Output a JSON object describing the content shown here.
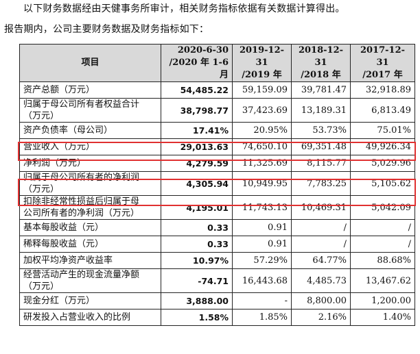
{
  "intro": {
    "line1": "以下财务数据经由天健事务所审计，相关财务指标依据有关数据计算得出。",
    "line2": "报告期内，公司主要财务数据及财务指标如下："
  },
  "table": {
    "headers": [
      [
        "项目"
      ],
      [
        "2020-6-30",
        "/2020 年 1-6 月"
      ],
      [
        "2019-12-31",
        "/2019 年"
      ],
      [
        "2018-12-31",
        "/2018 年"
      ],
      [
        "2017-12-31",
        "/2017 年"
      ]
    ],
    "rows": [
      {
        "label": [
          "资产总额（万元）"
        ],
        "values": [
          "54,485.22",
          "59,159.09",
          "39,781.47",
          "32,918.89"
        ]
      },
      {
        "label": [
          "归属于母公司所有者权益合计",
          "（万元）"
        ],
        "values": [
          "38,798.77",
          "37,423.69",
          "13,189.31",
          "6,813.49"
        ]
      },
      {
        "label": [
          "资产负债率（母公司）"
        ],
        "values": [
          "17.41%",
          "20.95%",
          "53.73%",
          "75.01%"
        ]
      },
      {
        "label": [
          "营业收入（万元）"
        ],
        "values": [
          "29,013.63",
          "74,650.10",
          "69,351.48",
          "49,926.34"
        ],
        "highlight": true
      },
      {
        "label": [
          "净利润（万元）"
        ],
        "values": [
          "4,279.59",
          "11,325.69",
          "8,115.77",
          "5,029.96"
        ]
      },
      {
        "label": [
          "归属于母公司所有者的净利润",
          "（万元）"
        ],
        "values": [
          "4,305.94",
          "10,949.95",
          "7,783.25",
          "5,105.62"
        ],
        "highlight": true
      },
      {
        "label": [
          "扣除非经常性损益后归属于母",
          "公司所有者的净利润（万元）"
        ],
        "values": [
          "4,195.01",
          "11,743.13",
          "10,469.31",
          "5,042.09"
        ]
      },
      {
        "label": [
          "基本每股收益（元）"
        ],
        "values": [
          "0.33",
          "0.91",
          "/",
          "/"
        ]
      },
      {
        "label": [
          "稀释每股收益（元）"
        ],
        "values": [
          "0.33",
          "0.91",
          "/",
          "/"
        ]
      },
      {
        "label": [
          "加权平均净资产收益率"
        ],
        "values": [
          "10.97%",
          "57.29%",
          "64.77%",
          "88.68%"
        ]
      },
      {
        "label": [
          "经营活动产生的现金流量净额",
          "（万元）"
        ],
        "values": [
          "-74.71",
          "16,443.68",
          "4,485.73",
          "13,467.62"
        ]
      },
      {
        "label": [
          "现金分红（万元）"
        ],
        "values": [
          "3,888.00",
          "-",
          "8,800.00",
          "1,200.00"
        ]
      },
      {
        "label": [
          "研发投入占营业收入的比例"
        ],
        "values": [
          "1.58%",
          "1.85%",
          "2.16%",
          "1.40%"
        ]
      }
    ]
  },
  "highlight_color": "#e03030",
  "header_bg": "#d9d9d9"
}
